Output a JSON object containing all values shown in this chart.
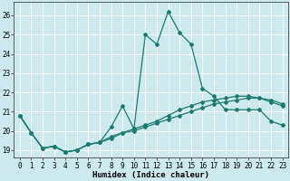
{
  "xlabel": "Humidex (Indice chaleur)",
  "background_color": "#cce9ed",
  "line_color": "#1a7a6e",
  "grid_color": "#ffffff",
  "ylim": [
    18.6,
    26.7
  ],
  "xlim": [
    -0.5,
    23.5
  ],
  "yticks": [
    19,
    20,
    21,
    22,
    23,
    24,
    25,
    26
  ],
  "xticks": [
    0,
    1,
    2,
    3,
    4,
    5,
    6,
    7,
    8,
    9,
    10,
    11,
    12,
    13,
    14,
    15,
    16,
    17,
    18,
    19,
    20,
    21,
    22,
    23
  ],
  "series1_x": [
    0,
    1,
    2,
    3,
    4,
    5,
    6,
    7,
    8,
    9,
    10,
    11,
    12,
    13,
    14,
    15,
    16,
    17,
    18,
    19,
    20,
    21,
    22,
    23
  ],
  "series1_y": [
    20.8,
    19.9,
    19.1,
    19.2,
    18.9,
    19.0,
    19.3,
    19.4,
    19.6,
    19.9,
    20.0,
    20.2,
    20.4,
    20.6,
    20.8,
    21.0,
    21.2,
    21.4,
    21.5,
    21.6,
    21.7,
    21.7,
    21.6,
    21.4
  ],
  "series2_x": [
    0,
    1,
    2,
    3,
    4,
    5,
    6,
    7,
    8,
    9,
    10,
    11,
    12,
    13,
    14,
    15,
    16,
    17,
    18,
    19,
    20,
    21,
    22,
    23
  ],
  "series2_y": [
    20.8,
    19.9,
    19.1,
    19.2,
    18.9,
    19.0,
    19.3,
    19.4,
    20.2,
    21.3,
    20.1,
    25.0,
    24.5,
    26.2,
    25.1,
    24.5,
    22.2,
    21.8,
    21.1,
    21.1,
    21.1,
    21.1,
    20.5,
    20.3
  ],
  "series3_x": [
    0,
    1,
    2,
    3,
    4,
    5,
    6,
    7,
    8,
    9,
    10,
    11,
    12,
    13,
    14,
    15,
    16,
    17,
    18,
    19,
    20,
    21,
    22,
    23
  ],
  "series3_y": [
    20.8,
    19.9,
    19.1,
    19.2,
    18.9,
    19.0,
    19.3,
    19.4,
    19.7,
    19.9,
    20.1,
    20.3,
    20.5,
    20.8,
    21.1,
    21.3,
    21.5,
    21.6,
    21.7,
    21.8,
    21.8,
    21.7,
    21.5,
    21.3
  ],
  "markersize": 2.0,
  "linewidth": 0.9,
  "xlabel_fontsize": 6.5,
  "tick_fontsize": 5.5
}
